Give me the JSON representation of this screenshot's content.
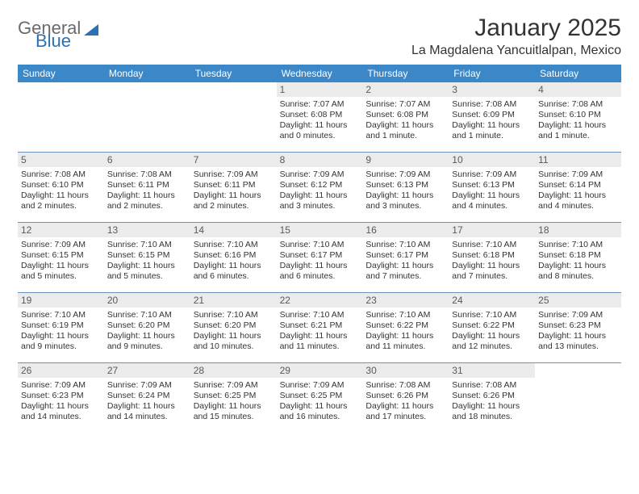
{
  "logo": {
    "general": "General",
    "blue": "Blue"
  },
  "title": "January 2025",
  "location": "La Magdalena Yancuitlalpan, Mexico",
  "header_bg": "#3b87c8",
  "weekdays": [
    "Sunday",
    "Monday",
    "Tuesday",
    "Wednesday",
    "Thursday",
    "Friday",
    "Saturday"
  ],
  "daynum_bg": "#ebebeb",
  "row_border": "#6a93bc",
  "weeks": [
    [
      {
        "n": "",
        "lines": []
      },
      {
        "n": "",
        "lines": []
      },
      {
        "n": "",
        "lines": []
      },
      {
        "n": "1",
        "lines": [
          "Sunrise: 7:07 AM",
          "Sunset: 6:08 PM",
          "Daylight: 11 hours and 0 minutes."
        ]
      },
      {
        "n": "2",
        "lines": [
          "Sunrise: 7:07 AM",
          "Sunset: 6:08 PM",
          "Daylight: 11 hours and 1 minute."
        ]
      },
      {
        "n": "3",
        "lines": [
          "Sunrise: 7:08 AM",
          "Sunset: 6:09 PM",
          "Daylight: 11 hours and 1 minute."
        ]
      },
      {
        "n": "4",
        "lines": [
          "Sunrise: 7:08 AM",
          "Sunset: 6:10 PM",
          "Daylight: 11 hours and 1 minute."
        ]
      }
    ],
    [
      {
        "n": "5",
        "lines": [
          "Sunrise: 7:08 AM",
          "Sunset: 6:10 PM",
          "Daylight: 11 hours and 2 minutes."
        ]
      },
      {
        "n": "6",
        "lines": [
          "Sunrise: 7:08 AM",
          "Sunset: 6:11 PM",
          "Daylight: 11 hours and 2 minutes."
        ]
      },
      {
        "n": "7",
        "lines": [
          "Sunrise: 7:09 AM",
          "Sunset: 6:11 PM",
          "Daylight: 11 hours and 2 minutes."
        ]
      },
      {
        "n": "8",
        "lines": [
          "Sunrise: 7:09 AM",
          "Sunset: 6:12 PM",
          "Daylight: 11 hours and 3 minutes."
        ]
      },
      {
        "n": "9",
        "lines": [
          "Sunrise: 7:09 AM",
          "Sunset: 6:13 PM",
          "Daylight: 11 hours and 3 minutes."
        ]
      },
      {
        "n": "10",
        "lines": [
          "Sunrise: 7:09 AM",
          "Sunset: 6:13 PM",
          "Daylight: 11 hours and 4 minutes."
        ]
      },
      {
        "n": "11",
        "lines": [
          "Sunrise: 7:09 AM",
          "Sunset: 6:14 PM",
          "Daylight: 11 hours and 4 minutes."
        ]
      }
    ],
    [
      {
        "n": "12",
        "lines": [
          "Sunrise: 7:09 AM",
          "Sunset: 6:15 PM",
          "Daylight: 11 hours and 5 minutes."
        ]
      },
      {
        "n": "13",
        "lines": [
          "Sunrise: 7:10 AM",
          "Sunset: 6:15 PM",
          "Daylight: 11 hours and 5 minutes."
        ]
      },
      {
        "n": "14",
        "lines": [
          "Sunrise: 7:10 AM",
          "Sunset: 6:16 PM",
          "Daylight: 11 hours and 6 minutes."
        ]
      },
      {
        "n": "15",
        "lines": [
          "Sunrise: 7:10 AM",
          "Sunset: 6:17 PM",
          "Daylight: 11 hours and 6 minutes."
        ]
      },
      {
        "n": "16",
        "lines": [
          "Sunrise: 7:10 AM",
          "Sunset: 6:17 PM",
          "Daylight: 11 hours and 7 minutes."
        ]
      },
      {
        "n": "17",
        "lines": [
          "Sunrise: 7:10 AM",
          "Sunset: 6:18 PM",
          "Daylight: 11 hours and 7 minutes."
        ]
      },
      {
        "n": "18",
        "lines": [
          "Sunrise: 7:10 AM",
          "Sunset: 6:18 PM",
          "Daylight: 11 hours and 8 minutes."
        ]
      }
    ],
    [
      {
        "n": "19",
        "lines": [
          "Sunrise: 7:10 AM",
          "Sunset: 6:19 PM",
          "Daylight: 11 hours and 9 minutes."
        ]
      },
      {
        "n": "20",
        "lines": [
          "Sunrise: 7:10 AM",
          "Sunset: 6:20 PM",
          "Daylight: 11 hours and 9 minutes."
        ]
      },
      {
        "n": "21",
        "lines": [
          "Sunrise: 7:10 AM",
          "Sunset: 6:20 PM",
          "Daylight: 11 hours and 10 minutes."
        ]
      },
      {
        "n": "22",
        "lines": [
          "Sunrise: 7:10 AM",
          "Sunset: 6:21 PM",
          "Daylight: 11 hours and 11 minutes."
        ]
      },
      {
        "n": "23",
        "lines": [
          "Sunrise: 7:10 AM",
          "Sunset: 6:22 PM",
          "Daylight: 11 hours and 11 minutes."
        ]
      },
      {
        "n": "24",
        "lines": [
          "Sunrise: 7:10 AM",
          "Sunset: 6:22 PM",
          "Daylight: 11 hours and 12 minutes."
        ]
      },
      {
        "n": "25",
        "lines": [
          "Sunrise: 7:09 AM",
          "Sunset: 6:23 PM",
          "Daylight: 11 hours and 13 minutes."
        ]
      }
    ],
    [
      {
        "n": "26",
        "lines": [
          "Sunrise: 7:09 AM",
          "Sunset: 6:23 PM",
          "Daylight: 11 hours and 14 minutes."
        ]
      },
      {
        "n": "27",
        "lines": [
          "Sunrise: 7:09 AM",
          "Sunset: 6:24 PM",
          "Daylight: 11 hours and 14 minutes."
        ]
      },
      {
        "n": "28",
        "lines": [
          "Sunrise: 7:09 AM",
          "Sunset: 6:25 PM",
          "Daylight: 11 hours and 15 minutes."
        ]
      },
      {
        "n": "29",
        "lines": [
          "Sunrise: 7:09 AM",
          "Sunset: 6:25 PM",
          "Daylight: 11 hours and 16 minutes."
        ]
      },
      {
        "n": "30",
        "lines": [
          "Sunrise: 7:08 AM",
          "Sunset: 6:26 PM",
          "Daylight: 11 hours and 17 minutes."
        ]
      },
      {
        "n": "31",
        "lines": [
          "Sunrise: 7:08 AM",
          "Sunset: 6:26 PM",
          "Daylight: 11 hours and 18 minutes."
        ]
      },
      {
        "n": "",
        "lines": []
      }
    ]
  ]
}
